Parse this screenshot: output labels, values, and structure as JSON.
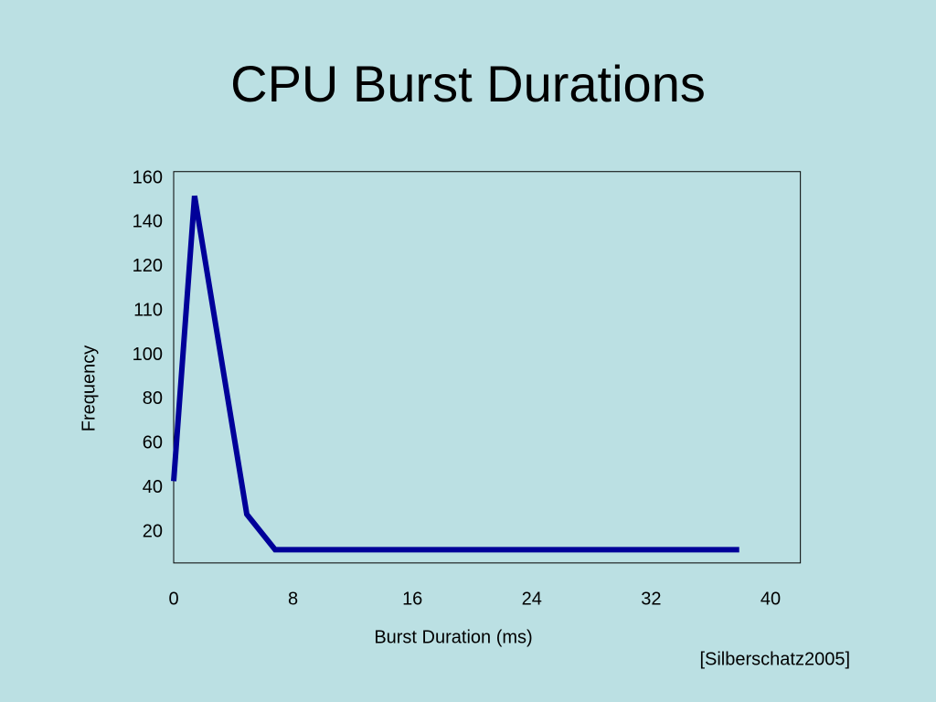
{
  "chart_data": {
    "type": "line",
    "title": "CPU Burst Durations",
    "x_label": "Burst Duration (ms)",
    "y_label": "Frequency",
    "source": "[Silberschatz2005]",
    "x": [
      0,
      1.4,
      4.9,
      6.8,
      37.9
    ],
    "series": [
      {
        "color": "#000099",
        "values": [
          43,
          152,
          28,
          12,
          12
        ]
      }
    ],
    "xlim": [
      0,
      42
    ],
    "xticks": [
      0,
      8,
      16,
      24,
      32,
      40
    ],
    "ylim": [
      6,
      163
    ],
    "yticks": [
      20,
      40,
      60,
      80,
      100,
      110,
      120,
      140,
      160
    ],
    "grid": false
  }
}
